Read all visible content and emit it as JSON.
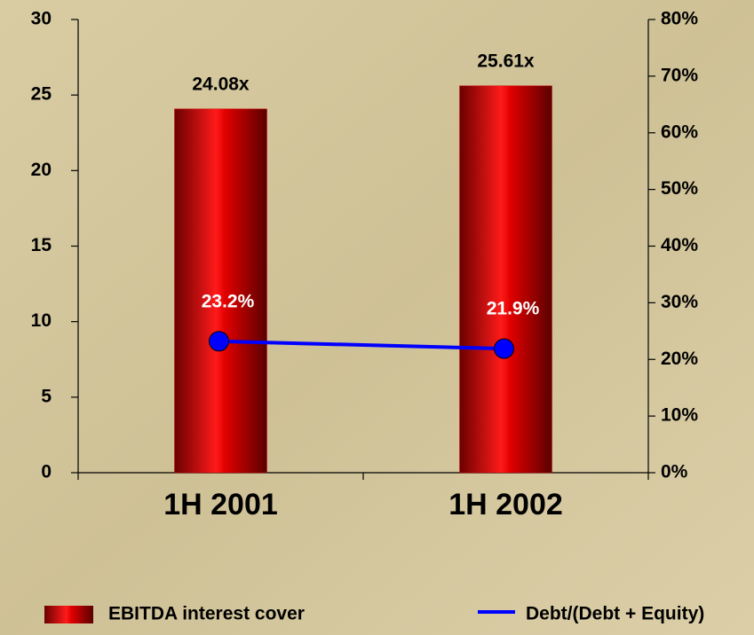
{
  "chart_data": {
    "type": "bar",
    "categories": [
      "1H 2001",
      "1H 2002"
    ],
    "series": [
      {
        "name": "EBITDA interest cover",
        "type": "bar",
        "color": "#cc0000",
        "values": [
          24.08,
          25.61
        ],
        "value_labels": [
          "24.08x",
          "25.61x"
        ]
      },
      {
        "name": "Debt/(Debt + Equity)",
        "type": "line",
        "axis": "y2",
        "color": "#0000ff",
        "values": [
          23.2,
          21.9
        ],
        "value_labels": [
          "23.2%",
          "21.9%"
        ]
      }
    ],
    "ylim": [
      0,
      30
    ],
    "yticks": [
      0,
      5,
      10,
      15,
      20,
      25,
      30
    ],
    "y2lim": [
      0,
      80
    ],
    "y2ticks": [
      {
        "value": 0,
        "label": "0%"
      },
      {
        "value": 10,
        "label": "10%"
      },
      {
        "value": 20,
        "label": "20%"
      },
      {
        "value": 30,
        "label": "30%"
      },
      {
        "value": 40,
        "label": "40%"
      },
      {
        "value": 50,
        "label": "50%"
      },
      {
        "value": 60,
        "label": "60%"
      },
      {
        "value": 70,
        "label": "70%"
      },
      {
        "value": 80,
        "label": "80%"
      }
    ],
    "legend": "bottom"
  }
}
